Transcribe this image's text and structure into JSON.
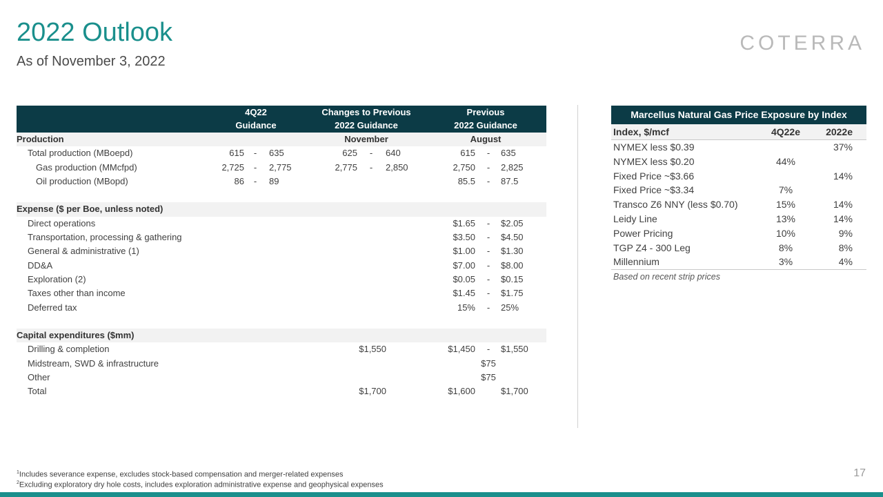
{
  "header": {
    "title": "2022 Outlook",
    "subtitle": "As of November 3, 2022",
    "logo_text": "COTERRA",
    "brand_color": "#1a8f8c",
    "header_fill": "#0c3b46"
  },
  "guidance": {
    "col_headers": [
      {
        "l1": "4Q22",
        "l2": "Guidance"
      },
      {
        "l1": "Changes to Previous",
        "l2": "2022 Guidance"
      },
      {
        "l1": "Previous",
        "l2": "2022 Guidance"
      }
    ],
    "production": {
      "label": "Production",
      "col2_label": "November",
      "col3_label": "August",
      "rows": [
        {
          "label": "Total production (MBoepd)",
          "q_lo": "615",
          "q_hi": "635",
          "c_lo": "625",
          "c_hi": "640",
          "p_lo": "615",
          "p_hi": "635"
        },
        {
          "label": "Gas production (MMcfpd)",
          "q_lo": "2,725",
          "q_hi": "2,775",
          "c_lo": "2,775",
          "c_hi": "2,850",
          "p_lo": "2,750",
          "p_hi": "2,825"
        },
        {
          "label": "Oil production (MBopd)",
          "q_lo": "86",
          "q_hi": "89",
          "p_lo": "85.5",
          "p_hi": "87.5"
        }
      ]
    },
    "expense": {
      "label": "Expense ($ per Boe, unless noted)",
      "rows": [
        {
          "label": "Direct operations",
          "p_lo": "$1.65",
          "p_hi": "$2.05"
        },
        {
          "label": "Transportation, processing & gathering",
          "p_lo": "$3.50",
          "p_hi": "$4.50"
        },
        {
          "label": "General & administrative (1)",
          "p_lo": "$1.00",
          "p_hi": "$1.30"
        },
        {
          "label": "DD&A",
          "p_lo": "$7.00",
          "p_hi": "$8.00"
        },
        {
          "label": "Exploration (2)",
          "p_lo": "$0.05",
          "p_hi": "$0.15"
        },
        {
          "label": "Taxes other than income",
          "p_lo": "$1.45",
          "p_hi": "$1.75"
        },
        {
          "label": "Deferred tax",
          "p_lo": "15%",
          "p_hi": "25%"
        }
      ]
    },
    "capex": {
      "label": "Capital expenditures ($mm)",
      "rows": [
        {
          "label": "Drilling & completion",
          "c": "$1,550",
          "p_lo": "$1,450",
          "p_hi": "$1,550",
          "dash": true
        },
        {
          "label": "Midstream, SWD & infrastructure",
          "p_mid": "$75"
        },
        {
          "label": "Other",
          "p_mid": "$75"
        },
        {
          "label": "Total",
          "c": "$1,700",
          "p_lo": "$1,600",
          "p_hi": "$1,700",
          "dash": false
        }
      ]
    },
    "dash_char": "-"
  },
  "marcellus": {
    "title": "Marcellus Natural Gas Price Exposure by Index",
    "columns": [
      "Index, $/mcf",
      "4Q22e",
      "2022e"
    ],
    "rows": [
      {
        "index": "NYMEX less $0.39",
        "q4": "",
        "y2022": "37%"
      },
      {
        "index": "NYMEX less $0.20",
        "q4": "44%",
        "y2022": ""
      },
      {
        "index": "Fixed Price ~$3.66",
        "q4": "",
        "y2022": "14%"
      },
      {
        "index": "Fixed Price ~$3.34",
        "q4": "7%",
        "y2022": ""
      },
      {
        "index": "Transco Z6 NNY (less $0.70)",
        "q4": "15%",
        "y2022": "14%"
      },
      {
        "index": "Leidy Line",
        "q4": "13%",
        "y2022": "14%"
      },
      {
        "index": "Power Pricing",
        "q4": "10%",
        "y2022": "9%"
      },
      {
        "index": "TGP Z4 - 300 Leg",
        "q4": "8%",
        "y2022": "8%"
      },
      {
        "index": "Millennium",
        "q4": "3%",
        "y2022": "4%"
      }
    ],
    "note": "Based on recent strip prices"
  },
  "footnotes": [
    {
      "sup": "1",
      "text": "Includes severance expense, excludes stock-based compensation and merger-related expenses"
    },
    {
      "sup": "2",
      "text": "Excluding exploratory dry hole costs, includes exploration administrative expense and geophysical expenses"
    }
  ],
  "page_number": "17"
}
